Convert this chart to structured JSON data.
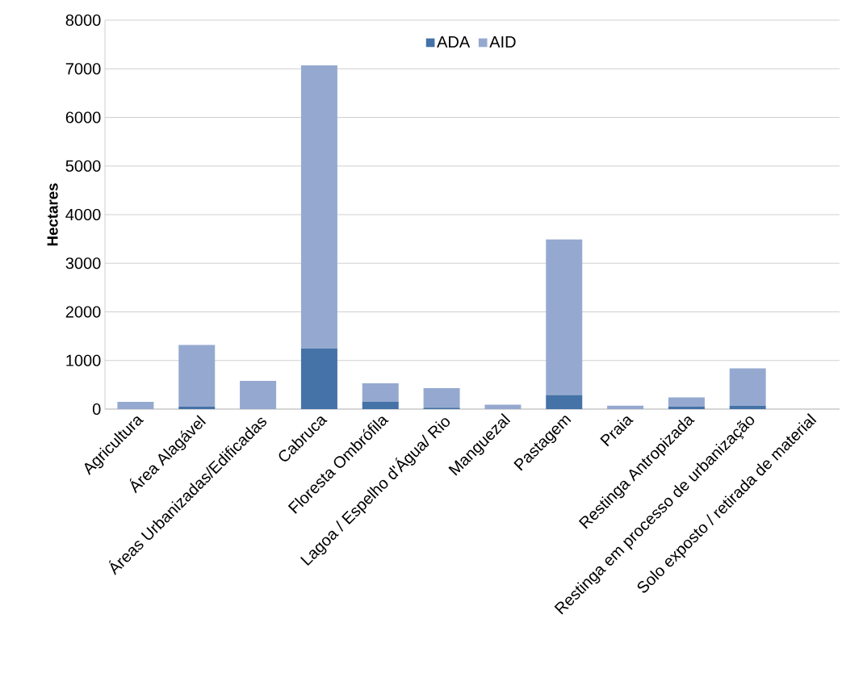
{
  "chart_data": {
    "type": "bar",
    "stacked": true,
    "ylabel": "Hectares",
    "categories": [
      "Agricultura",
      "Área Alagável",
      "Áreas Urbanizadas/Edificadas",
      "Cabruca",
      "Floresta Ombrófila",
      "Lagoa / Espelho d'Água/ Rio",
      "Manguezal",
      "Pastagem",
      "Praia",
      "Restinga Antropizada",
      "Restinga em processo de urbanização",
      "Solo exposto / retirada de material"
    ],
    "series": [
      {
        "name": "ADA",
        "color": "#4572a7",
        "values": [
          0,
          50,
          0,
          1250,
          150,
          30,
          0,
          290,
          0,
          50,
          70,
          0
        ]
      },
      {
        "name": "AID",
        "color": "#95a9d0",
        "values": [
          150,
          1270,
          580,
          5820,
          380,
          400,
          90,
          3200,
          70,
          190,
          770,
          0
        ]
      }
    ],
    "ylim": [
      0,
      8000
    ],
    "yticks": [
      0,
      1000,
      2000,
      3000,
      4000,
      5000,
      6000,
      7000,
      8000
    ],
    "grid": "y",
    "legend": "top"
  }
}
